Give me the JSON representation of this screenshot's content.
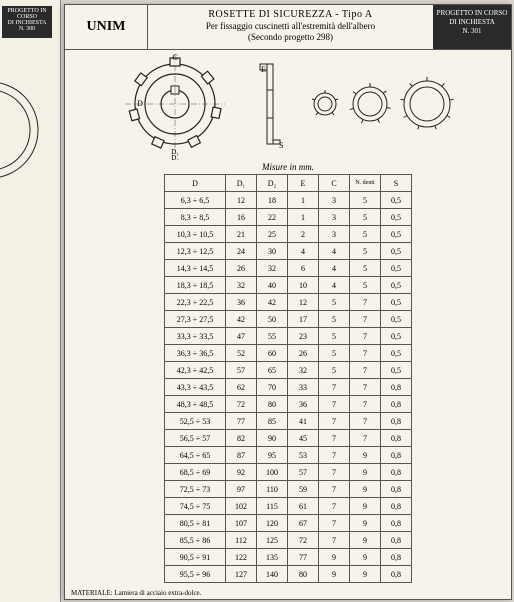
{
  "left_page": {
    "badge_lines": [
      "PROGETTO IN CORSO",
      "DI INCHIESTA",
      "N. 300"
    ]
  },
  "header": {
    "brand": "UNIM",
    "title_line1": "ROSETTE DI SICUREZZA - Tipo A",
    "title_line2": "Per fissaggio cuscinetti all'estremità dell'albero",
    "title_line3": "(Secondo progetto 298)",
    "badge_line1": "PROGETTO IN CORSO",
    "badge_line2": "DI INCHIESTA",
    "badge_line3": "N. 301"
  },
  "diagram": {
    "dim_labels": [
      "C",
      "D",
      "D₁",
      "D₂",
      "E",
      "S"
    ],
    "stroke": "#222",
    "fill": "#f6f3ea"
  },
  "table": {
    "caption": "Misure in mm.",
    "columns": [
      "D",
      "D₁",
      "D₂",
      "E",
      "C",
      "N. denti",
      "S"
    ],
    "rows": [
      [
        "6,3 ÷ 6,5",
        "12",
        "18",
        "1",
        "3",
        "5",
        "0,5"
      ],
      [
        "8,3 ÷ 8,5",
        "16",
        "22",
        "1",
        "3",
        "5",
        "0,5"
      ],
      [
        "10,3 ÷ 10,5",
        "21",
        "25",
        "2",
        "3",
        "5",
        "0,5"
      ],
      [
        "12,3 ÷ 12,5",
        "24",
        "30",
        "4",
        "4",
        "5",
        "0,5"
      ],
      [
        "14,3 ÷ 14,5",
        "26",
        "32",
        "6",
        "4",
        "5",
        "0,5"
      ],
      [
        "18,3 ÷ 18,5",
        "32",
        "40",
        "10",
        "4",
        "5",
        "0,5"
      ],
      [
        "22,3 ÷ 22,5",
        "36",
        "42",
        "12",
        "5",
        "7",
        "0,5"
      ],
      [
        "27,3 ÷ 27,5",
        "42",
        "50",
        "17",
        "5",
        "7",
        "0,5"
      ],
      [
        "33,3 ÷ 33,5",
        "47",
        "55",
        "23",
        "5",
        "7",
        "0,5"
      ],
      [
        "36,3 ÷ 36,5",
        "52",
        "60",
        "26",
        "5",
        "7",
        "0,5"
      ],
      [
        "42,3 ÷ 42,5",
        "57",
        "65",
        "32",
        "5",
        "7",
        "0,5"
      ],
      [
        "43,3 ÷ 43,5",
        "62",
        "70",
        "33",
        "7",
        "7",
        "0,8"
      ],
      [
        "48,3 ÷ 48,5",
        "72",
        "80",
        "36",
        "7",
        "7",
        "0,8"
      ],
      [
        "52,5 ÷ 53",
        "77",
        "85",
        "41",
        "7",
        "7",
        "0,8"
      ],
      [
        "56,5 ÷ 57",
        "82",
        "90",
        "45",
        "7",
        "7",
        "0,8"
      ],
      [
        "64,5 ÷ 65",
        "87",
        "95",
        "53",
        "7",
        "9",
        "0,8"
      ],
      [
        "68,5 ÷ 69",
        "92",
        "100",
        "57",
        "7",
        "9",
        "0,8"
      ],
      [
        "72,5 ÷ 73",
        "97",
        "110",
        "59",
        "7",
        "9",
        "0,8"
      ],
      [
        "74,5 ÷ 75",
        "102",
        "115",
        "61",
        "7",
        "9",
        "0,8"
      ],
      [
        "80,5 ÷ 81",
        "107",
        "120",
        "67",
        "7",
        "9",
        "0,8"
      ],
      [
        "85,5 ÷ 86",
        "112",
        "125",
        "72",
        "7",
        "9",
        "0,8"
      ],
      [
        "90,5 ÷ 91",
        "122",
        "135",
        "77",
        "9",
        "9",
        "0,8"
      ],
      [
        "95,5 ÷ 96",
        "127",
        "140",
        "80",
        "9",
        "9",
        "0,8"
      ]
    ]
  },
  "footer": {
    "material_label": "MATERIALE:",
    "material_value": "Lamiera di acciaio extra-dolce."
  }
}
